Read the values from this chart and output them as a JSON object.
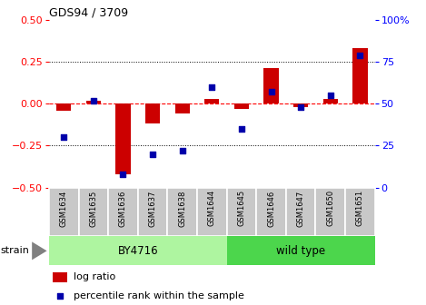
{
  "title": "GDS94 / 3709",
  "samples": [
    "GSM1634",
    "GSM1635",
    "GSM1636",
    "GSM1637",
    "GSM1638",
    "GSM1644",
    "GSM1645",
    "GSM1646",
    "GSM1647",
    "GSM1650",
    "GSM1651"
  ],
  "log_ratio": [
    -0.04,
    0.02,
    -0.42,
    -0.12,
    -0.06,
    0.03,
    -0.03,
    0.21,
    -0.02,
    0.03,
    0.33
  ],
  "percentile_rank": [
    30,
    52,
    8,
    20,
    22,
    60,
    35,
    57,
    48,
    55,
    79
  ],
  "groups": [
    {
      "label": "BY4716",
      "start": 0,
      "end": 5,
      "color": "#aef5a0"
    },
    {
      "label": "wild type",
      "start": 6,
      "end": 10,
      "color": "#4cd64c"
    }
  ],
  "ylim_left": [
    -0.5,
    0.5
  ],
  "ylim_right": [
    0,
    100
  ],
  "left_yticks": [
    -0.5,
    -0.25,
    0.0,
    0.25,
    0.5
  ],
  "right_yticks": [
    0,
    25,
    50,
    75,
    100
  ],
  "hline_color": "#FF0000",
  "bar_color": "#CC0000",
  "dot_color": "#0000AA",
  "dotted_line_color": "#000000",
  "background_color": "#FFFFFF",
  "plot_bg_color": "#FFFFFF",
  "strain_label": "strain",
  "legend_log_ratio": "log ratio",
  "legend_percentile": "percentile rank within the sample",
  "bar_width": 0.5,
  "dot_size": 22,
  "label_bg": "#C8C8C8",
  "label_border": "#FFFFFF"
}
